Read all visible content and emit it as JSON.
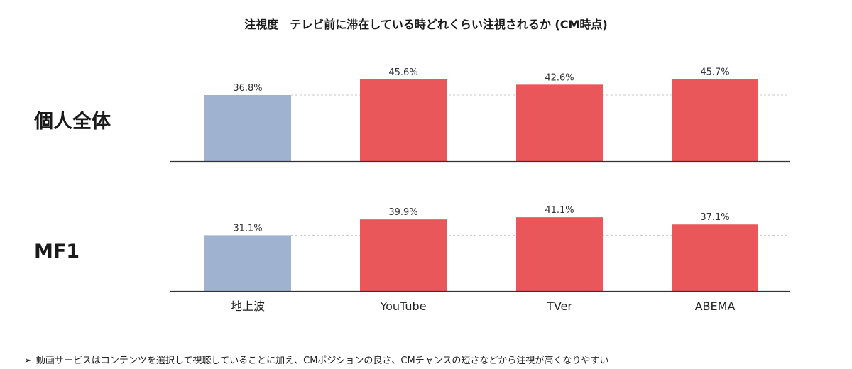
{
  "chart_data": {
    "type": "bar",
    "title": "注視度　テレビ前に滞在している時どれくらい注視されるか (CM時点)",
    "categories": [
      "地上波",
      "YouTube",
      "TVer",
      "ABEMA"
    ],
    "series": [
      {
        "name": "個人全体",
        "values": [
          36.8,
          45.6,
          42.6,
          45.7
        ],
        "labels": [
          "36.8%",
          "45.6%",
          "42.6%",
          "45.7%"
        ]
      },
      {
        "name": "MF1",
        "values": [
          31.1,
          39.9,
          41.1,
          37.1
        ],
        "labels": [
          "31.1%",
          "39.9%",
          "41.1%",
          "37.1%"
        ]
      }
    ],
    "ylim": [
      0,
      50
    ],
    "colors": {
      "baseline": "#9fb2d0",
      "highlight": "#e9575a"
    },
    "grid": false,
    "legend": "none"
  },
  "footnote": {
    "marker": "➢",
    "text": "動画サービスはコンテンツを選択して視聴していることに加え、CMポジションの良さ、CMチャンスの短さなどから注視が高くなりやすい"
  }
}
